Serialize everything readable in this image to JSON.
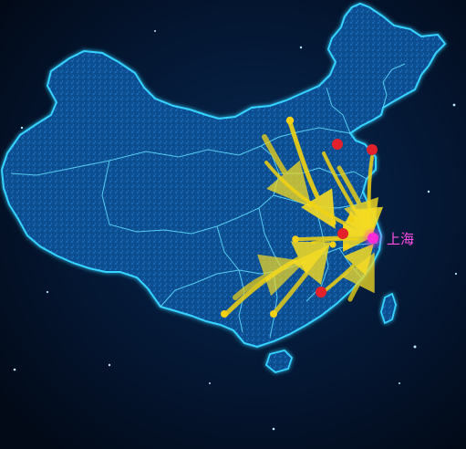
{
  "map": {
    "highlight_city": {
      "label": "上海",
      "color": "#ff2bd9"
    },
    "colors": {
      "background": "#031024",
      "land": "#0e4d8f",
      "border_glow": "#35d6ff",
      "arrow": "#f2d312",
      "origin_dot": "#f3d117",
      "hub_dot": "#e2212b"
    }
  }
}
